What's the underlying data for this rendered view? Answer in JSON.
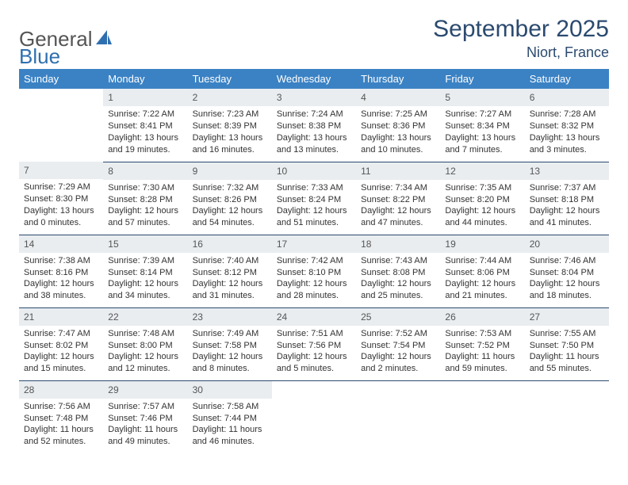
{
  "logo": {
    "text1": "General",
    "text2": "Blue",
    "color1": "#6a6a6a",
    "color2": "#2f6fb0",
    "icon_color": "#2f6fb0"
  },
  "title": "September 2025",
  "location": "Niort, France",
  "colors": {
    "header_bg": "#3b82c4",
    "header_text": "#ffffff",
    "title_color": "#2b4a6f",
    "daynum_bg": "#e9edf0",
    "row_border": "#2b4a6f",
    "body_text": "#333333"
  },
  "dayHeaders": [
    "Sunday",
    "Monday",
    "Tuesday",
    "Wednesday",
    "Thursday",
    "Friday",
    "Saturday"
  ],
  "weeks": [
    [
      {
        "empty": true
      },
      {
        "n": "1",
        "sr": "7:22 AM",
        "ss": "8:41 PM",
        "dl": "13 hours and 19 minutes."
      },
      {
        "n": "2",
        "sr": "7:23 AM",
        "ss": "8:39 PM",
        "dl": "13 hours and 16 minutes."
      },
      {
        "n": "3",
        "sr": "7:24 AM",
        "ss": "8:38 PM",
        "dl": "13 hours and 13 minutes."
      },
      {
        "n": "4",
        "sr": "7:25 AM",
        "ss": "8:36 PM",
        "dl": "13 hours and 10 minutes."
      },
      {
        "n": "5",
        "sr": "7:27 AM",
        "ss": "8:34 PM",
        "dl": "13 hours and 7 minutes."
      },
      {
        "n": "6",
        "sr": "7:28 AM",
        "ss": "8:32 PM",
        "dl": "13 hours and 3 minutes."
      }
    ],
    [
      {
        "n": "7",
        "sr": "7:29 AM",
        "ss": "8:30 PM",
        "dl": "13 hours and 0 minutes."
      },
      {
        "n": "8",
        "sr": "7:30 AM",
        "ss": "8:28 PM",
        "dl": "12 hours and 57 minutes."
      },
      {
        "n": "9",
        "sr": "7:32 AM",
        "ss": "8:26 PM",
        "dl": "12 hours and 54 minutes."
      },
      {
        "n": "10",
        "sr": "7:33 AM",
        "ss": "8:24 PM",
        "dl": "12 hours and 51 minutes."
      },
      {
        "n": "11",
        "sr": "7:34 AM",
        "ss": "8:22 PM",
        "dl": "12 hours and 47 minutes."
      },
      {
        "n": "12",
        "sr": "7:35 AM",
        "ss": "8:20 PM",
        "dl": "12 hours and 44 minutes."
      },
      {
        "n": "13",
        "sr": "7:37 AM",
        "ss": "8:18 PM",
        "dl": "12 hours and 41 minutes."
      }
    ],
    [
      {
        "n": "14",
        "sr": "7:38 AM",
        "ss": "8:16 PM",
        "dl": "12 hours and 38 minutes."
      },
      {
        "n": "15",
        "sr": "7:39 AM",
        "ss": "8:14 PM",
        "dl": "12 hours and 34 minutes."
      },
      {
        "n": "16",
        "sr": "7:40 AM",
        "ss": "8:12 PM",
        "dl": "12 hours and 31 minutes."
      },
      {
        "n": "17",
        "sr": "7:42 AM",
        "ss": "8:10 PM",
        "dl": "12 hours and 28 minutes."
      },
      {
        "n": "18",
        "sr": "7:43 AM",
        "ss": "8:08 PM",
        "dl": "12 hours and 25 minutes."
      },
      {
        "n": "19",
        "sr": "7:44 AM",
        "ss": "8:06 PM",
        "dl": "12 hours and 21 minutes."
      },
      {
        "n": "20",
        "sr": "7:46 AM",
        "ss": "8:04 PM",
        "dl": "12 hours and 18 minutes."
      }
    ],
    [
      {
        "n": "21",
        "sr": "7:47 AM",
        "ss": "8:02 PM",
        "dl": "12 hours and 15 minutes."
      },
      {
        "n": "22",
        "sr": "7:48 AM",
        "ss": "8:00 PM",
        "dl": "12 hours and 12 minutes."
      },
      {
        "n": "23",
        "sr": "7:49 AM",
        "ss": "7:58 PM",
        "dl": "12 hours and 8 minutes."
      },
      {
        "n": "24",
        "sr": "7:51 AM",
        "ss": "7:56 PM",
        "dl": "12 hours and 5 minutes."
      },
      {
        "n": "25",
        "sr": "7:52 AM",
        "ss": "7:54 PM",
        "dl": "12 hours and 2 minutes."
      },
      {
        "n": "26",
        "sr": "7:53 AM",
        "ss": "7:52 PM",
        "dl": "11 hours and 59 minutes."
      },
      {
        "n": "27",
        "sr": "7:55 AM",
        "ss": "7:50 PM",
        "dl": "11 hours and 55 minutes."
      }
    ],
    [
      {
        "n": "28",
        "sr": "7:56 AM",
        "ss": "7:48 PM",
        "dl": "11 hours and 52 minutes."
      },
      {
        "n": "29",
        "sr": "7:57 AM",
        "ss": "7:46 PM",
        "dl": "11 hours and 49 minutes."
      },
      {
        "n": "30",
        "sr": "7:58 AM",
        "ss": "7:44 PM",
        "dl": "11 hours and 46 minutes."
      },
      {
        "empty": true
      },
      {
        "empty": true
      },
      {
        "empty": true
      },
      {
        "empty": true
      }
    ]
  ],
  "labels": {
    "sunrise": "Sunrise:",
    "sunset": "Sunset:",
    "daylight": "Daylight:"
  }
}
